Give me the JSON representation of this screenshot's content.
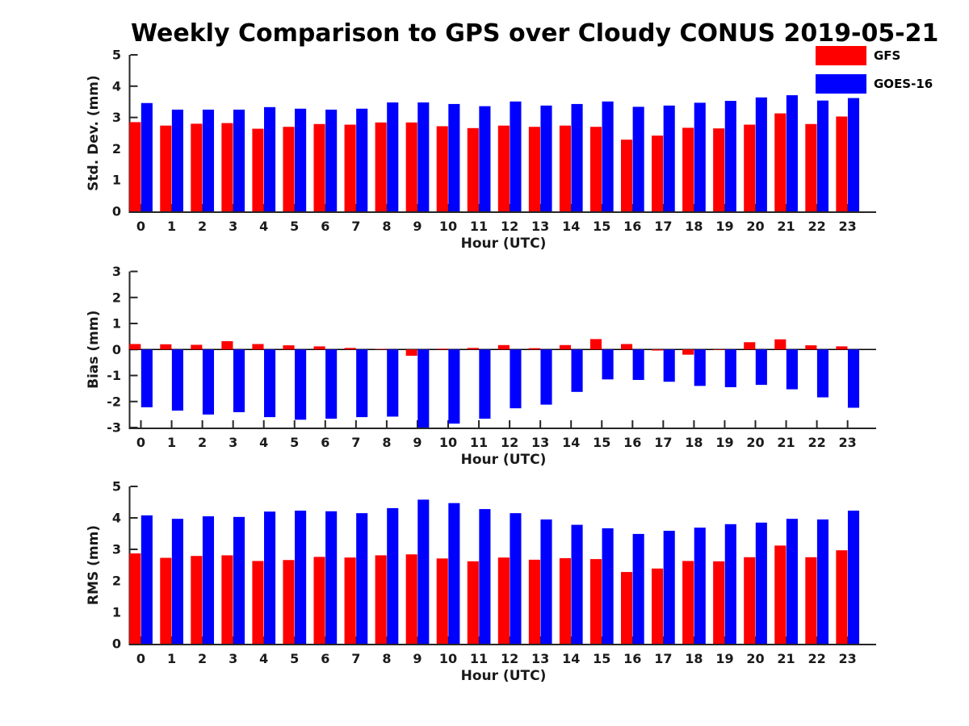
{
  "title": "Weekly Comparison to GPS over Cloudy CONUS 2019-05-21",
  "legend": {
    "position": "top-right",
    "items": [
      {
        "label": "GFS",
        "color": "#ff0000"
      },
      {
        "label": "GOES-16",
        "color": "#0000ff"
      }
    ]
  },
  "colors": {
    "gfs": "#ff0000",
    "goes16": "#0000ff",
    "axis": "#262626",
    "text": "#1a1a1a",
    "background": "#ffffff"
  },
  "chart_data": [
    {
      "id": "std-dev",
      "type": "bar",
      "title": "",
      "xlabel": "Hour (UTC)",
      "ylabel": "Std. Dev. (mm)",
      "ylim": [
        0,
        5
      ],
      "yticks": [
        0,
        1,
        2,
        3,
        4,
        5
      ],
      "grid": false,
      "categories": [
        "0",
        "1",
        "2",
        "3",
        "4",
        "5",
        "6",
        "7",
        "8",
        "9",
        "10",
        "11",
        "12",
        "13",
        "14",
        "15",
        "16",
        "17",
        "18",
        "19",
        "20",
        "21",
        "22",
        "23"
      ],
      "series": [
        {
          "name": "GFS",
          "color": "#ff0000",
          "values": [
            2.85,
            2.74,
            2.8,
            2.82,
            2.64,
            2.7,
            2.79,
            2.77,
            2.84,
            2.84,
            2.72,
            2.66,
            2.74,
            2.7,
            2.74,
            2.7,
            2.29,
            2.42,
            2.67,
            2.65,
            2.77,
            3.13,
            2.79,
            3.03
          ]
        },
        {
          "name": "GOES-16",
          "color": "#0000ff",
          "values": [
            3.46,
            3.25,
            3.25,
            3.25,
            3.33,
            3.28,
            3.25,
            3.28,
            3.48,
            3.48,
            3.43,
            3.36,
            3.51,
            3.38,
            3.43,
            3.51,
            3.34,
            3.38,
            3.47,
            3.53,
            3.64,
            3.71,
            3.54,
            3.62
          ]
        }
      ]
    },
    {
      "id": "bias",
      "type": "bar",
      "title": "",
      "xlabel": "Hour (UTC)",
      "ylabel": "Bias (mm)",
      "ylim": [
        -3,
        3
      ],
      "yticks": [
        3,
        2,
        1,
        0,
        -1,
        -2,
        -3
      ],
      "grid": false,
      "categories": [
        "0",
        "1",
        "2",
        "3",
        "4",
        "5",
        "6",
        "7",
        "8",
        "9",
        "10",
        "11",
        "12",
        "13",
        "14",
        "15",
        "16",
        "17",
        "18",
        "19",
        "20",
        "21",
        "22",
        "23"
      ],
      "series": [
        {
          "name": "GFS",
          "color": "#ff0000",
          "values": [
            0.21,
            0.2,
            0.18,
            0.32,
            0.21,
            0.16,
            0.12,
            0.06,
            0.02,
            -0.24,
            0.03,
            0.06,
            0.17,
            0.05,
            0.17,
            0.4,
            0.21,
            -0.04,
            -0.2,
            -0.02,
            0.28,
            0.39,
            0.16,
            0.12
          ]
        },
        {
          "name": "GOES-16",
          "color": "#0000ff",
          "values": [
            -2.22,
            -2.35,
            -2.5,
            -2.41,
            -2.6,
            -2.7,
            -2.66,
            -2.6,
            -2.58,
            -3.0,
            -2.85,
            -2.66,
            -2.26,
            -2.12,
            -1.63,
            -1.15,
            -1.17,
            -1.24,
            -1.4,
            -1.45,
            -1.36,
            -1.53,
            -1.84,
            -2.24
          ]
        }
      ]
    },
    {
      "id": "rms",
      "type": "bar",
      "title": "",
      "xlabel": "Hour (UTC)",
      "ylabel": "RMS (mm)",
      "ylim": [
        0,
        5
      ],
      "yticks": [
        0,
        1,
        2,
        3,
        4,
        5
      ],
      "grid": false,
      "categories": [
        "0",
        "1",
        "2",
        "3",
        "4",
        "5",
        "6",
        "7",
        "8",
        "9",
        "10",
        "11",
        "12",
        "13",
        "14",
        "15",
        "16",
        "17",
        "18",
        "19",
        "20",
        "21",
        "22",
        "23"
      ],
      "series": [
        {
          "name": "GFS",
          "color": "#ff0000",
          "values": [
            2.87,
            2.73,
            2.79,
            2.81,
            2.63,
            2.66,
            2.76,
            2.74,
            2.81,
            2.84,
            2.71,
            2.62,
            2.74,
            2.67,
            2.72,
            2.69,
            2.28,
            2.39,
            2.63,
            2.62,
            2.75,
            3.12,
            2.75,
            2.97
          ]
        },
        {
          "name": "GOES-16",
          "color": "#0000ff",
          "values": [
            4.08,
            3.97,
            4.05,
            4.03,
            4.2,
            4.23,
            4.21,
            4.15,
            4.31,
            4.58,
            4.47,
            4.28,
            4.15,
            3.95,
            3.78,
            3.67,
            3.49,
            3.59,
            3.69,
            3.8,
            3.85,
            3.97,
            3.95,
            4.23
          ]
        }
      ]
    }
  ]
}
